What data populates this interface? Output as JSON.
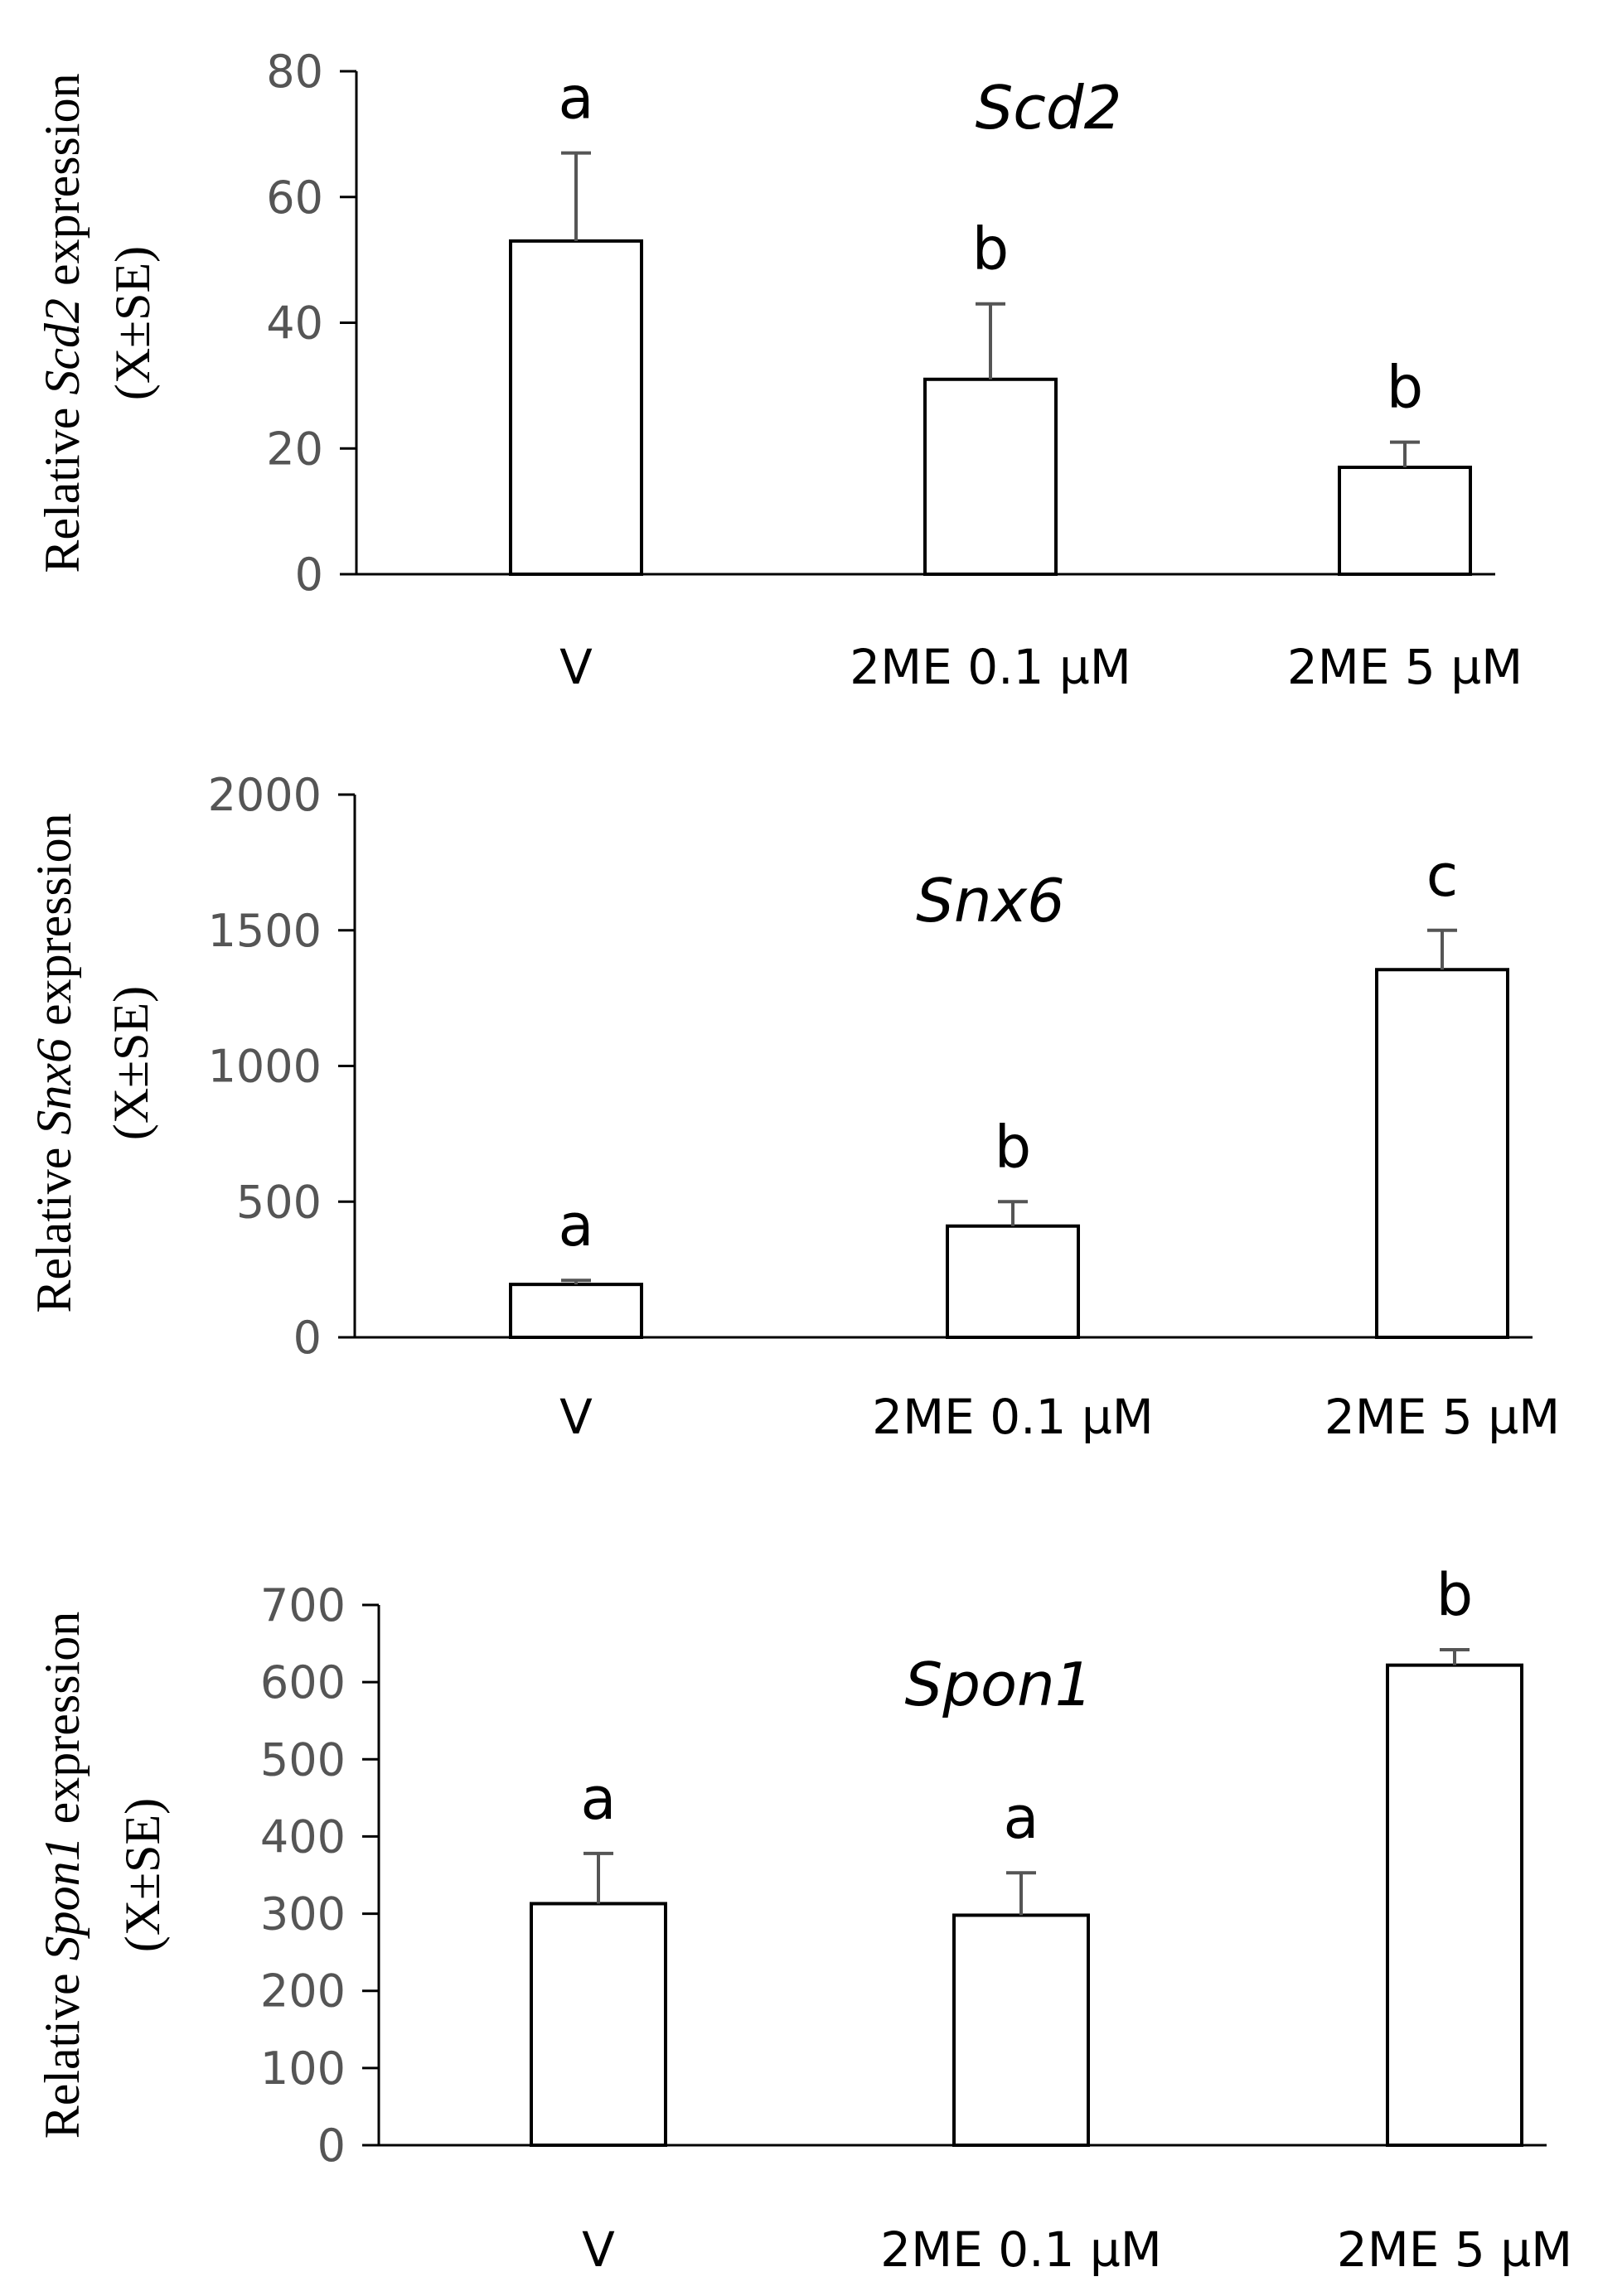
{
  "chart_data": [
    {
      "type": "bar",
      "title": "Scd2",
      "ylabel": {
        "line1_prefix": "Relative ",
        "gene": "Scd2",
        "line1_suffix": " expression",
        "line2": "(X±SE)"
      },
      "xlabel": "",
      "ylim": [
        0,
        80
      ],
      "yticks": [
        0,
        20,
        40,
        60,
        80
      ],
      "categories": [
        "V",
        "2ME 0.1 µM",
        "2ME 5 µM"
      ],
      "values": [
        53,
        31,
        17
      ],
      "errors": [
        14,
        12,
        4
      ],
      "significance": [
        "a",
        "b",
        "b"
      ]
    },
    {
      "type": "bar",
      "title": "Snx6",
      "ylabel": {
        "line1_prefix": "Relative ",
        "gene": "Snx6",
        "line1_suffix": " expression",
        "line2": "(X±SE)"
      },
      "xlabel": "",
      "ylim": [
        0,
        2000
      ],
      "yticks": [
        0,
        500,
        1000,
        1500,
        2000
      ],
      "categories": [
        "V",
        "2ME 0.1 µM",
        "2ME 5 µM"
      ],
      "values": [
        195,
        410,
        1355
      ],
      "errors": [
        15,
        90,
        145
      ],
      "significance": [
        "a",
        "b",
        "c"
      ]
    },
    {
      "type": "bar",
      "title": "Spon1",
      "ylabel": {
        "line1_prefix": "Relative ",
        "gene": "Spon1",
        "line1_suffix": " expression",
        "line2": "(X±SE)"
      },
      "xlabel": "",
      "ylim": [
        0,
        700
      ],
      "yticks": [
        0,
        100,
        200,
        300,
        400,
        500,
        600,
        700
      ],
      "categories": [
        "V",
        "2ME 0.1 µM",
        "2ME 5 µM"
      ],
      "values": [
        313,
        298,
        622
      ],
      "errors": [
        65,
        55,
        20
      ],
      "significance": [
        "a",
        "a",
        "b"
      ]
    }
  ]
}
